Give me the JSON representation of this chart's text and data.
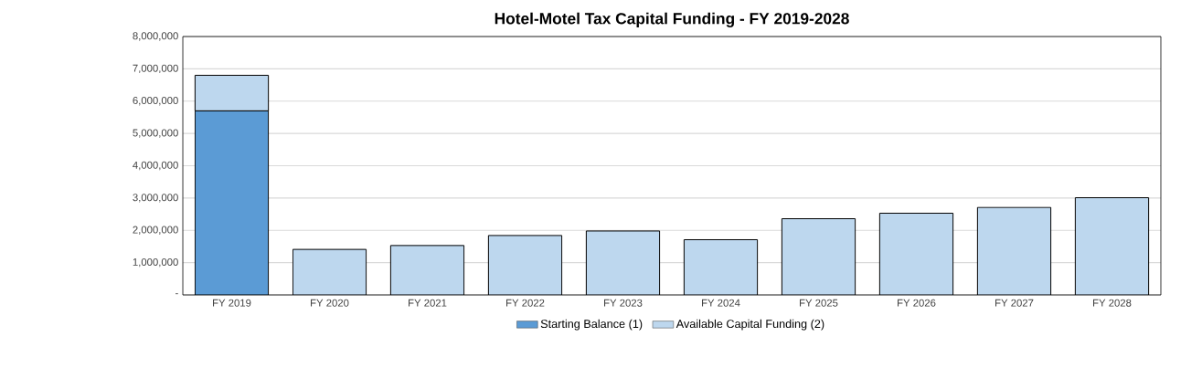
{
  "chart_data": {
    "type": "bar",
    "title": "Hotel-Motel Tax Capital Funding - FY 2019-2028",
    "stacked": true,
    "categories": [
      "FY 2019",
      "FY 2020",
      "FY 2021",
      "FY 2022",
      "FY 2023",
      "FY 2024",
      "FY 2025",
      "FY 2026",
      "FY 2027",
      "FY 2028"
    ],
    "series": [
      {
        "name": "Starting Balance (1)",
        "color": "#5b9bd5",
        "values": [
          5700000,
          null,
          null,
          null,
          null,
          null,
          null,
          null,
          null,
          null
        ]
      },
      {
        "name": "Available Capital Funding (2)",
        "color": "#bdd7ee",
        "values": [
          1100000,
          1410000,
          1530000,
          1840000,
          1980000,
          1710000,
          2360000,
          2530000,
          2710000,
          3010000
        ]
      }
    ],
    "ylim": [
      0,
      8000000
    ],
    "yticks": [
      {
        "value": 0,
        "label": "-"
      },
      {
        "value": 1000000,
        "label": "1,000,000"
      },
      {
        "value": 2000000,
        "label": "2,000,000"
      },
      {
        "value": 3000000,
        "label": "3,000,000"
      },
      {
        "value": 4000000,
        "label": "4,000,000"
      },
      {
        "value": 5000000,
        "label": "5,000,000"
      },
      {
        "value": 6000000,
        "label": "6,000,000"
      },
      {
        "value": 7000000,
        "label": "7,000,000"
      },
      {
        "value": 8000000,
        "label": "8,000,000"
      }
    ],
    "grid": "y",
    "legend": "bottom"
  }
}
